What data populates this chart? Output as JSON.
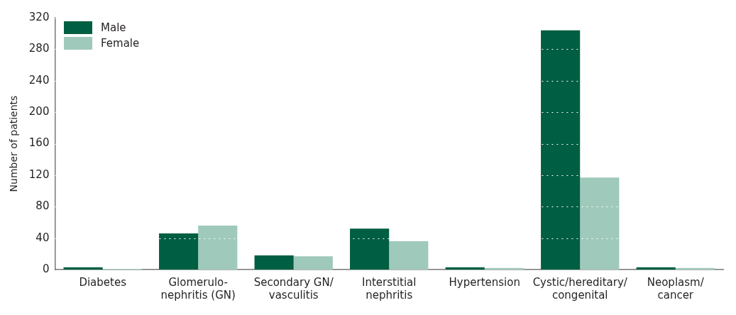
{
  "chart_data": {
    "type": "bar",
    "ylabel": "Number of patients",
    "categories": [
      "Diabetes",
      "Glomerulo-\nnephritis (GN)",
      "Secondary GN/\nvasculitis",
      "Interstitial\nnephritis",
      "Hypertension",
      "Cystic/hereditary/\ncongenital",
      "Neoplasm/\ncancer"
    ],
    "series": [
      {
        "name": "Male",
        "color": "#005e42",
        "values": [
          3,
          46,
          18,
          52,
          3,
          304,
          3
        ]
      },
      {
        "name": "Female",
        "color": "#9ec9bb",
        "values": [
          1,
          56,
          17,
          36,
          2,
          117,
          2
        ]
      }
    ],
    "ylim": [
      0,
      320
    ],
    "yticks": [
      0,
      40,
      80,
      120,
      160,
      200,
      240,
      280,
      320
    ],
    "grid": "y",
    "legend": "top left"
  }
}
